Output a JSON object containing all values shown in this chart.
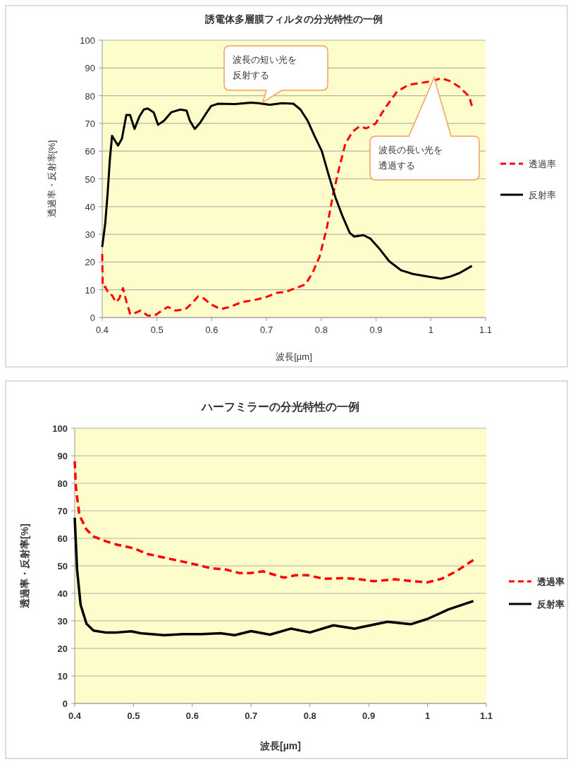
{
  "chart_data": [
    {
      "type": "line",
      "title": "誘電体多層膜フィルタの分光特性の一例",
      "xlabel": "波長[µm]",
      "ylabel": "透過率・反射率[%]",
      "xlim": [
        0.4,
        1.1
      ],
      "xticks": [
        0.4,
        0.5,
        0.6,
        0.7,
        0.8,
        0.9,
        1,
        1.1
      ],
      "ylim": [
        0,
        100
      ],
      "yticks": [
        0,
        10,
        20,
        30,
        40,
        50,
        60,
        70,
        80,
        90,
        100
      ],
      "grid": "y",
      "legend": "right",
      "marker": "none",
      "annotations": [
        {
          "text": "波長の短い光を反射する",
          "x": 0.693,
          "y": 77.6
        },
        "波長の長い光を透過する"
      ],
      "series": [
        {
          "name": "透過率",
          "color": "#ff0000",
          "line_style": "dashed",
          "x": [
            0.4,
            0.401,
            0.406,
            0.412,
            0.418,
            0.425,
            0.431,
            0.438,
            0.444,
            0.451,
            0.461,
            0.47,
            0.483,
            0.496,
            0.509,
            0.52,
            0.534,
            0.552,
            0.564,
            0.575,
            0.586,
            0.599,
            0.616,
            0.633,
            0.654,
            0.68,
            0.697,
            0.719,
            0.736,
            0.753,
            0.771,
            0.784,
            0.797,
            0.81,
            0.822,
            0.833,
            0.844,
            0.857,
            0.87,
            0.882,
            0.899,
            0.916,
            0.938,
            0.959,
            0.985,
            1.002,
            1.019,
            1.036,
            1.053,
            1.07,
            1.075
          ],
          "values": [
            22.9,
            11,
            11,
            8.5,
            8,
            5.5,
            6.8,
            10.6,
            5.9,
            1.3,
            1.7,
            2.5,
            0.7,
            0.7,
            2.5,
            3.8,
            2.5,
            3,
            5.1,
            7.6,
            6.8,
            4.7,
            3,
            3.8,
            5.5,
            6.4,
            7.2,
            8.9,
            9.3,
            10.6,
            11.9,
            16.1,
            22,
            32.2,
            44.9,
            54.2,
            62.7,
            67,
            69,
            68.2,
            69.9,
            75.4,
            81.4,
            83.9,
            84.7,
            85.2,
            86.3,
            85.2,
            83,
            79.7,
            76.3
          ]
        },
        {
          "name": "反射率",
          "color": "#000000",
          "line_style": "solid",
          "x": [
            0.4,
            0.4056,
            0.41,
            0.414,
            0.418,
            0.4227,
            0.429,
            0.436,
            0.444,
            0.451,
            0.459,
            0.468,
            0.476,
            0.483,
            0.494,
            0.502,
            0.513,
            0.526,
            0.543,
            0.554,
            0.56,
            0.569,
            0.579,
            0.59,
            0.599,
            0.612,
            0.642,
            0.672,
            0.685,
            0.706,
            0.728,
            0.749,
            0.762,
            0.775,
            0.788,
            0.801,
            0.813,
            0.826,
            0.839,
            0.852,
            0.86,
            0.877,
            0.89,
            0.907,
            0.924,
            0.946,
            0.967,
            0.993,
            1.019,
            1.036,
            1.053,
            1.075
          ],
          "values": [
            25.4,
            34,
            45,
            57,
            65.5,
            64,
            62,
            64.5,
            73,
            73,
            68,
            72.5,
            75,
            75.4,
            74,
            69.5,
            71,
            74,
            75,
            74.6,
            71,
            68,
            70.3,
            73.7,
            76.3,
            77.1,
            77,
            77.5,
            77.3,
            76.7,
            77.3,
            77.1,
            75,
            71,
            65.3,
            60,
            51.7,
            43.2,
            36.4,
            30.5,
            29.2,
            29.7,
            28.4,
            24.6,
            20.3,
            17,
            15.7,
            14.8,
            14,
            14.8,
            16.1,
            18.6
          ]
        }
      ]
    },
    {
      "type": "line",
      "title": "ハーフミラーの分光特性の一例",
      "xlabel": "波長[µm]",
      "ylabel": "透過率・反射率[%]",
      "xlim": [
        0.4,
        1.1
      ],
      "xticks": [
        0.4,
        0.5,
        0.6,
        0.7,
        0.8,
        0.9,
        1,
        1.1
      ],
      "ylim": [
        0,
        100
      ],
      "yticks": [
        0,
        10,
        20,
        30,
        40,
        50,
        60,
        70,
        80,
        90,
        100
      ],
      "grid": "y",
      "legend": "right",
      "marker": "none",
      "series": [
        {
          "name": "透過率",
          "color": "#ff0000",
          "line_style": "dashed",
          "x": [
            0.4,
            0.402,
            0.408,
            0.42,
            0.432,
            0.452,
            0.472,
            0.5,
            0.524,
            0.552,
            0.58,
            0.608,
            0.632,
            0.656,
            0.68,
            0.7,
            0.72,
            0.736,
            0.756,
            0.776,
            0.796,
            0.824,
            0.856,
            0.88,
            0.908,
            0.944,
            0.976,
            1.0,
            1.024,
            1.048,
            1.078
          ],
          "values": [
            88,
            78.6,
            68.4,
            63.2,
            60.7,
            59,
            57.7,
            56.4,
            54.3,
            53,
            51.7,
            50.4,
            49.1,
            48.7,
            47.4,
            47.4,
            48,
            47,
            45.7,
            46.6,
            46.6,
            45.3,
            45.5,
            45.3,
            44.4,
            45.1,
            44.4,
            44,
            45.3,
            47.9,
            52.1
          ]
        },
        {
          "name": "反射率",
          "color": "#000000",
          "line_style": "solid",
          "x": [
            0.4,
            0.404,
            0.41,
            0.42,
            0.432,
            0.452,
            0.472,
            0.496,
            0.512,
            0.552,
            0.584,
            0.616,
            0.648,
            0.672,
            0.7,
            0.732,
            0.768,
            0.8,
            0.84,
            0.876,
            0.932,
            0.972,
            1.0,
            1.036,
            1.078
          ],
          "values": [
            67.5,
            48.7,
            35.9,
            29,
            26.5,
            25.8,
            25.8,
            26.2,
            25.5,
            24.8,
            25.2,
            25.2,
            25.5,
            24.8,
            26.3,
            25,
            27.2,
            25.8,
            28.4,
            27.2,
            29.7,
            28.8,
            30.7,
            34.2,
            37.2
          ]
        }
      ]
    }
  ]
}
